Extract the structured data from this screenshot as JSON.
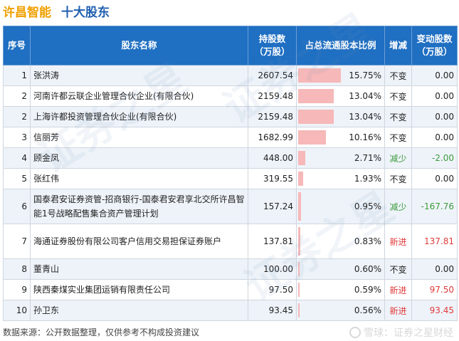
{
  "header": {
    "company": "许昌智能",
    "subtitle": "十大股东"
  },
  "table": {
    "columns": [
      "序号",
      "股东名称",
      "持股数\n（万股）",
      "占总流通股本比例",
      "增减",
      "变动股数\n（万股）"
    ],
    "rows": [
      {
        "idx": "1",
        "name": "张洪涛",
        "shares": "2607.54",
        "pct": 15.75,
        "pct_text": "15.75%",
        "action": "不变",
        "action_type": "keep",
        "change": "0.00"
      },
      {
        "idx": "2",
        "name": "河南许都云联企业管理合伙企业(有限合伙)",
        "shares": "2159.48",
        "pct": 13.04,
        "pct_text": "13.04%",
        "action": "不变",
        "action_type": "keep",
        "change": "0.00"
      },
      {
        "idx": "2",
        "name": "上海许都投资管理合伙企业(有限合伙)",
        "shares": "2159.48",
        "pct": 13.04,
        "pct_text": "13.04%",
        "action": "不变",
        "action_type": "keep",
        "change": "0.00"
      },
      {
        "idx": "3",
        "name": "信丽芳",
        "shares": "1682.99",
        "pct": 10.16,
        "pct_text": "10.16%",
        "action": "不变",
        "action_type": "keep",
        "change": "0.00"
      },
      {
        "idx": "4",
        "name": "顾金凤",
        "shares": "448.00",
        "pct": 2.71,
        "pct_text": "2.71%",
        "action": "减少",
        "action_type": "down",
        "change": "-2.00"
      },
      {
        "idx": "5",
        "name": "张红伟",
        "shares": "319.55",
        "pct": 1.93,
        "pct_text": "1.93%",
        "action": "不变",
        "action_type": "keep",
        "change": "0.00"
      },
      {
        "idx": "6",
        "name": "国泰君安证券资管-招商银行-国泰君安君享北交所许昌智能1号战略配售集合资产管理计划",
        "shares": "157.24",
        "pct": 0.95,
        "pct_text": "0.95%",
        "action": "减少",
        "action_type": "down",
        "change": "-167.76",
        "tall": true
      },
      {
        "idx": "7",
        "name": "海通证券股份有限公司客户信用交易担保证券账户",
        "shares": "137.81",
        "pct": 0.83,
        "pct_text": "0.83%",
        "action": "新进",
        "action_type": "new",
        "change": "137.81",
        "tall": true
      },
      {
        "idx": "8",
        "name": "董青山",
        "shares": "100.00",
        "pct": 0.6,
        "pct_text": "0.60%",
        "action": "不变",
        "action_type": "keep",
        "change": "0.00"
      },
      {
        "idx": "9",
        "name": "陕西秦煤实业集团运销有限责任公司",
        "shares": "97.50",
        "pct": 0.59,
        "pct_text": "0.59%",
        "action": "新进",
        "action_type": "new",
        "change": "97.50"
      },
      {
        "idx": "10",
        "name": "孙卫东",
        "shares": "93.45",
        "pct": 0.56,
        "pct_text": "0.56%",
        "action": "新进",
        "action_type": "new",
        "change": "93.45"
      }
    ],
    "pct_max": 15.75
  },
  "footer": {
    "source": "数据来源：公开数据整理，仅供参考不构成投资建议"
  },
  "brand": {
    "text": "雪球：证券之星财经",
    "icon": "snowball-icon"
  },
  "watermark": "证券之星",
  "colors": {
    "header_bg": "#1f6fc2",
    "company": "#f0a000",
    "subtitle": "#1f5fb0",
    "bar": "#f6b8b8",
    "down": "#3d9a3d",
    "new": "#e23a3a"
  }
}
